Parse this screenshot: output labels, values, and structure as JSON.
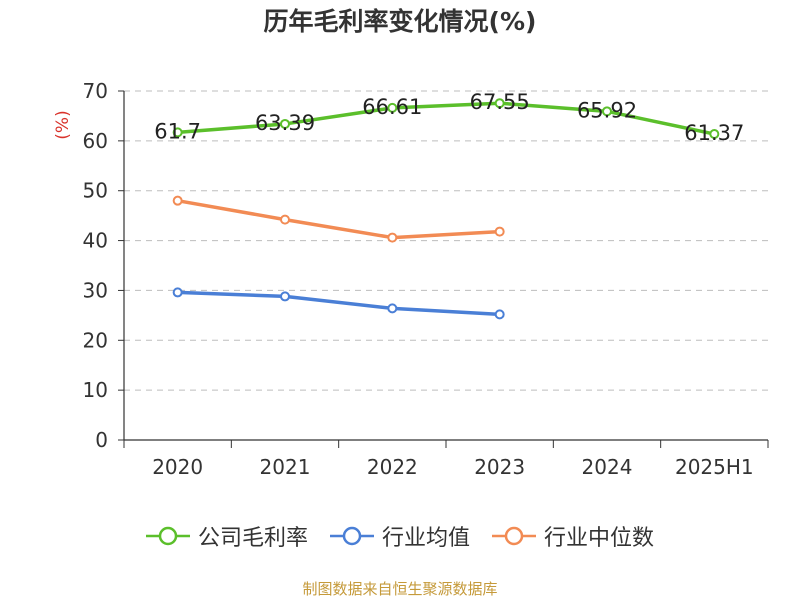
{
  "title": "历年毛利率变化情况(%)",
  "source": "制图数据来自恒生聚源数据库",
  "chart_data": {
    "type": "line",
    "title": "历年毛利率变化情况(%)",
    "ylabel": "(%)",
    "xlabel": "",
    "categories": [
      "2020",
      "2021",
      "2022",
      "2023",
      "2024",
      "2025H1"
    ],
    "ylim": [
      0,
      70
    ],
    "yticks": [
      0,
      10,
      20,
      30,
      40,
      50,
      60,
      70
    ],
    "grid": true,
    "legend_position": "bottom",
    "series": [
      {
        "name": "公司毛利率",
        "color": "#5bbf2b",
        "values": [
          61.7,
          63.39,
          66.61,
          67.55,
          65.92,
          61.37
        ],
        "labels": [
          "61.7",
          "63.39",
          "66.61",
          "67.55",
          "65.92",
          "61.37"
        ]
      },
      {
        "name": "行业均值",
        "color": "#4a7fd6",
        "values": [
          29.6,
          28.8,
          26.4,
          25.2,
          null,
          null
        ]
      },
      {
        "name": "行业中位数",
        "color": "#f28b54",
        "values": [
          48.0,
          44.2,
          40.6,
          41.8,
          null,
          null
        ]
      }
    ]
  }
}
